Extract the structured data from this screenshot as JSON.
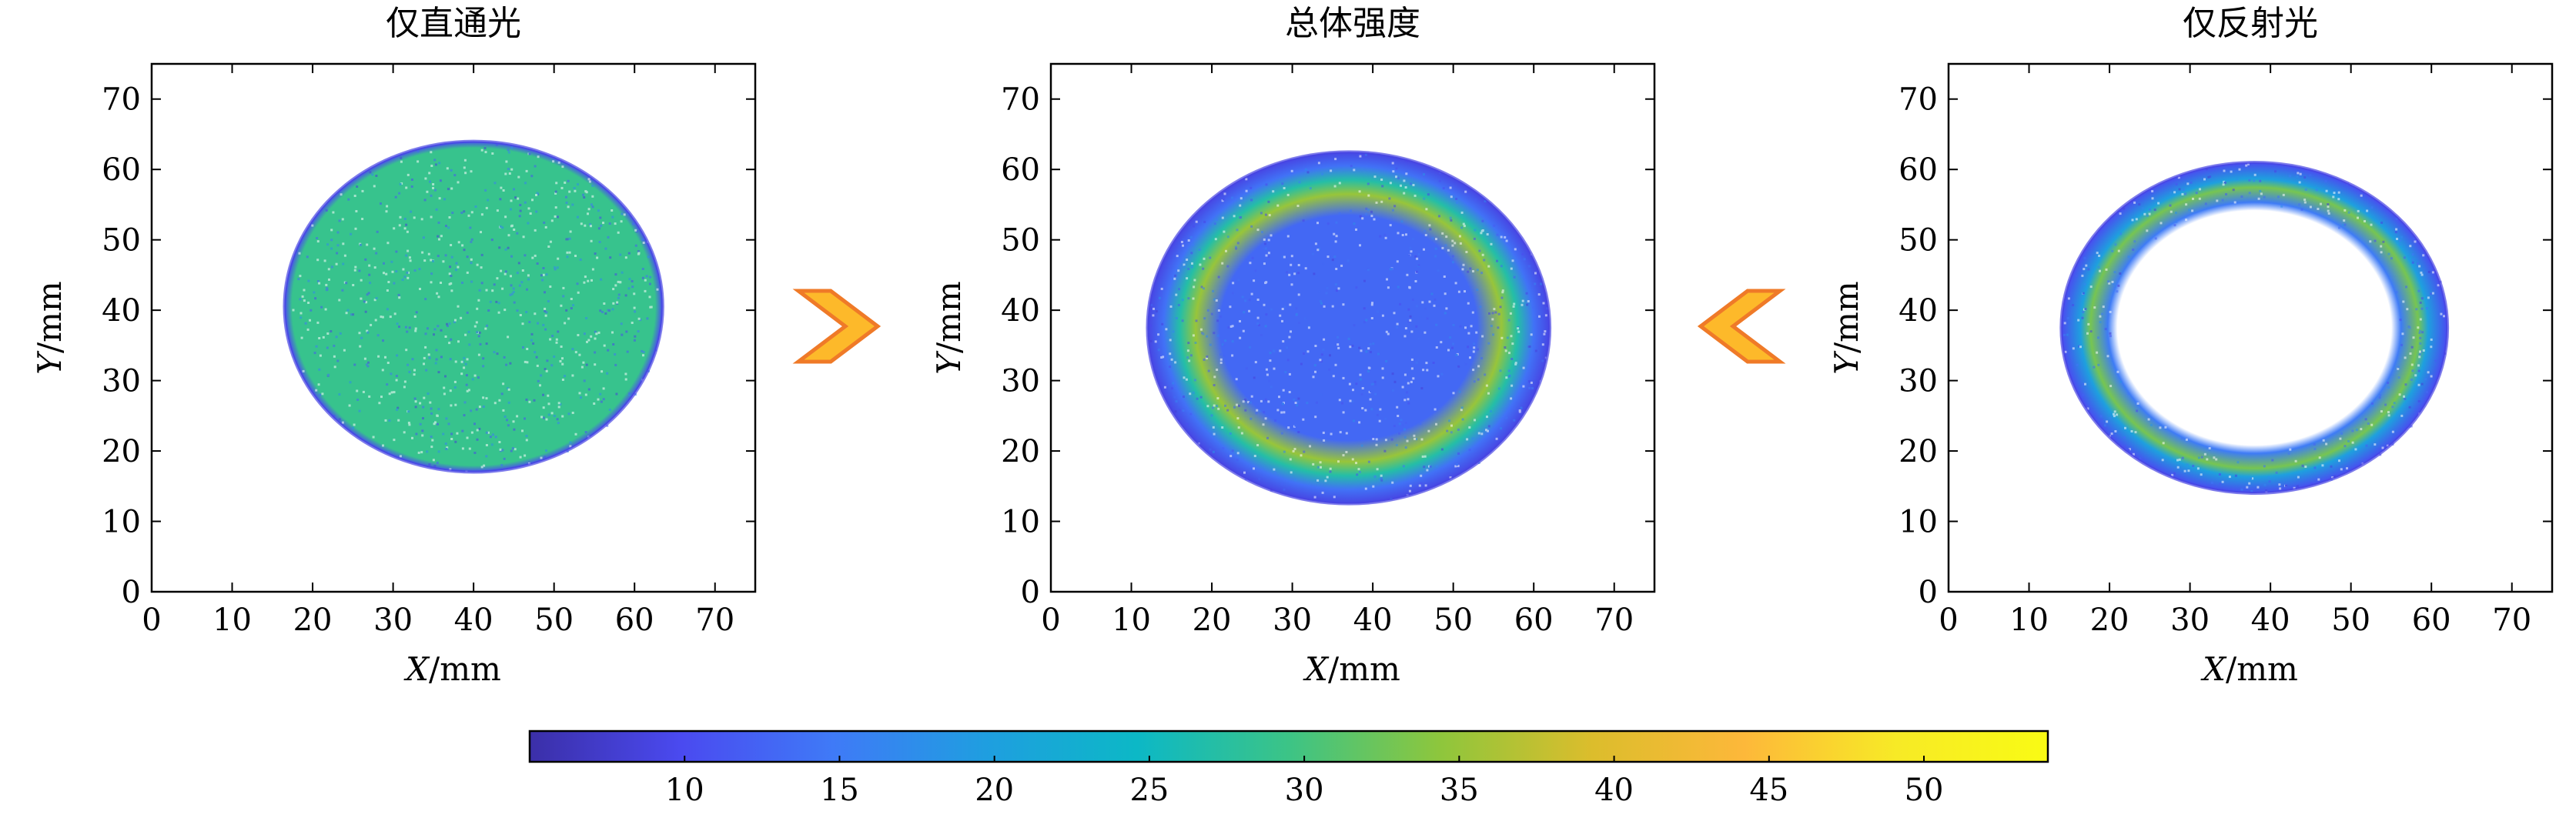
{
  "chart_data": [
    {
      "type": "heatmap",
      "title": "仅直通光",
      "xlabel_var": "X",
      "xlabel_unit": "/mm",
      "ylabel_var": "Y",
      "ylabel_unit": "/mm",
      "xlim": [
        0,
        75
      ],
      "ylim": [
        0,
        75
      ],
      "xticks": [
        "0",
        "10",
        "20",
        "30",
        "40",
        "50",
        "60",
        "70"
      ],
      "yticks": [
        "0",
        "10",
        "20",
        "30",
        "40",
        "50",
        "60",
        "70"
      ],
      "spot": {
        "shape": "disk",
        "center": [
          40,
          40.5
        ],
        "radius_x": 23.5,
        "radius_y": 23.5,
        "value": 29
      }
    },
    {
      "type": "heatmap",
      "title": "总体强度",
      "xlabel_var": "X",
      "xlabel_unit": "/mm",
      "ylabel_var": "Y",
      "ylabel_unit": "/mm",
      "xlim": [
        0,
        75
      ],
      "ylim": [
        0,
        75
      ],
      "xticks": [
        "0",
        "10",
        "20",
        "30",
        "40",
        "50",
        "60",
        "70"
      ],
      "yticks": [
        "0",
        "10",
        "20",
        "30",
        "40",
        "50",
        "60",
        "70"
      ],
      "spot": {
        "shape": "disk-with-ring",
        "center": [
          37,
          37.5
        ],
        "radius_x": 25,
        "radius_y": 25,
        "inner_radius": 17,
        "ring_value": 35,
        "core_value": 13
      }
    },
    {
      "type": "heatmap",
      "title": "仅反射光",
      "xlabel_var": "X",
      "xlabel_unit": "/mm",
      "ylabel_var": "Y",
      "ylabel_unit": "/mm",
      "xlim": [
        0,
        75
      ],
      "ylim": [
        0,
        75
      ],
      "xticks": [
        "0",
        "10",
        "20",
        "30",
        "40",
        "50",
        "60",
        "70"
      ],
      "yticks": [
        "0",
        "10",
        "20",
        "30",
        "40",
        "50",
        "60",
        "70"
      ],
      "spot": {
        "shape": "ring",
        "center": [
          38,
          37.5
        ],
        "radius_x": 24,
        "radius_y": 23.5,
        "inner_radius": 17.5,
        "ring_value": 33
      }
    }
  ],
  "colorbar": {
    "min": 5,
    "max": 54,
    "ticks": [
      "10",
      "15",
      "20",
      "25",
      "30",
      "35",
      "40",
      "45",
      "50"
    ],
    "colors": [
      "#3b2fa8",
      "#4a4af0",
      "#3f7af7",
      "#1f9ee0",
      "#0cb8c6",
      "#3cc486",
      "#8ec63c",
      "#dcbd2c",
      "#fdb83a",
      "#f7ea26",
      "#f9fb14"
    ]
  },
  "arrows": [
    {
      "direction": "right",
      "fill": "#fdb92a",
      "stroke": "#ef7a28"
    },
    {
      "direction": "left",
      "fill": "#fdb92a",
      "stroke": "#ef7a28"
    }
  ]
}
